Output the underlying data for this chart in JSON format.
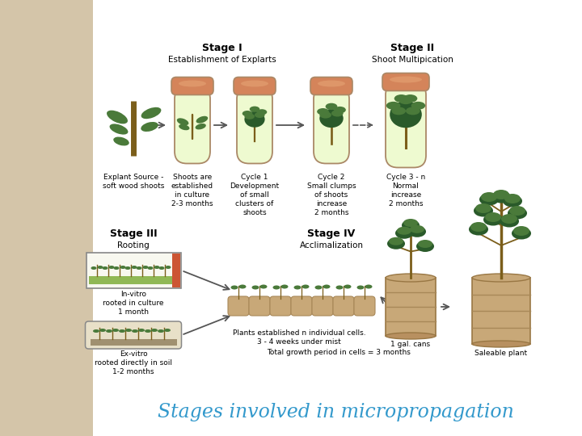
{
  "title": "Stages involved in micropropagation",
  "title_color": "#3399CC",
  "bg_color": "#FFFFFF",
  "bg_left_color": "#D4C5A9",
  "stage1_title": "Stage I",
  "stage1_subtitle": "Establishment of Explarts",
  "stage2_title": "Stage II",
  "stage2_subtitle": "Shoot Multipication",
  "stage3_title": "Stage III",
  "stage3_subtitle": "Rooting",
  "stage4_title": "Stage IV",
  "stage4_subtitle": "Acclimalization",
  "label_explant": "Explant Source -\nsoft wood shoots",
  "label_tube1": "Shoots are\nestablished\nin culture\n2-3 months",
  "label_tube2": "Cycle 1\nDevelopment\nof small\nclusters of\nshoots",
  "label_tube3": "Cycle 2\nSmall clumps\nof shoots\nincrease\n2 months",
  "label_tube4": "Cycle 3 - n\nNormal\nincrease\n2 months",
  "label_invitro": "In-vitro\nrooted in culture\n1 month",
  "label_exvitro": "Ex-vitro\nrooted directly in soil\n1-2 months",
  "label_cells1": "Plants established n individual cells.",
  "label_cells2": "3 - 4 weeks under mist",
  "label_cells3": "Total growth period in cells = 3 months",
  "label_can": "1 gal. cans",
  "label_saleable": "Saleable plant",
  "tube_color": "#EEFAD0",
  "tube_cap_color": "#D4845A",
  "tube_outline": "#AA8866",
  "tube_cap_light": "#E8A878",
  "arrow_color": "#555555",
  "plant_stem_color": "#7B5E1A",
  "plant_leaf_color": "#4A7A3A",
  "leaf_dark": "#2A5A2A",
  "container_color": "#C8A878",
  "container_stripe": "#A88858",
  "bg_left_circle1": "#C8B890",
  "bg_left_circle2": "#D4C8A8"
}
